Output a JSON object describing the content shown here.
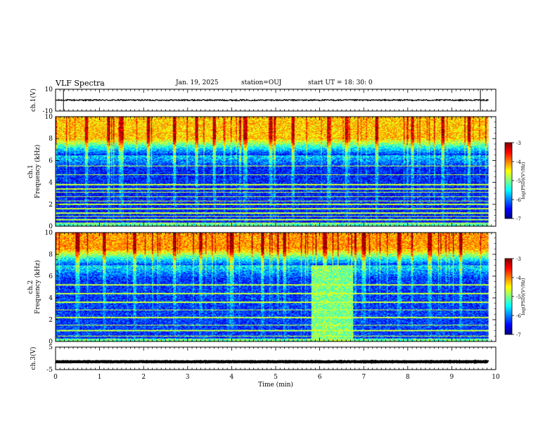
{
  "header": {
    "title": "VLF Spectra",
    "date": "Jan. 19, 2025",
    "station": "station=OUJ",
    "start": "start UT =  18: 30: 0"
  },
  "colors": {
    "colormap": [
      "#00007f",
      "#0000ff",
      "#007fff",
      "#00ffff",
      "#7fff7f",
      "#ffff00",
      "#ff7f00",
      "#ff0000",
      "#7f0000"
    ],
    "waveform": "#000000",
    "background": "#ffffff"
  },
  "chart_data": [
    {
      "type": "line",
      "name": "ch1-waveform",
      "ylabel": "ch.1(V)",
      "ylim": [
        -10,
        10
      ],
      "ytick_labels": [
        "10",
        "-10"
      ],
      "xlim": [
        0,
        10
      ],
      "baseline": 0,
      "noise_amplitude": 0.6,
      "spikes_min": [
        0.18,
        9.65
      ],
      "legend": "none"
    },
    {
      "type": "heatmap",
      "name": "ch1-spectrogram",
      "ylabel": "ch.1\nFrequency (kHz)",
      "ylim": [
        0,
        10
      ],
      "xlim": [
        0,
        10
      ],
      "ytick_labels": [
        "0",
        "2",
        "4",
        "6",
        "8",
        "10"
      ],
      "colorbar": {
        "label": "log(PSD)(V²/Hz)",
        "range": [
          -7,
          -3
        ],
        "tick_labels": [
          "-3",
          "-4",
          "-5",
          "-6",
          "-7"
        ]
      },
      "data_end_min": 9.83,
      "quiet_band_khz": [
        0.3,
        6.5
      ],
      "emission_band_khz": [
        6.5,
        10
      ],
      "log_psd_emission": -4.3,
      "log_psd_quiet": -6.4,
      "narrowband_lines_khz": [
        0.3,
        0.6,
        0.9,
        1.2,
        1.6,
        2.0,
        2.3,
        2.7,
        3.1,
        3.4,
        3.8,
        4.7,
        5.5
      ],
      "impulsive_events_min": [
        0.7,
        1.2,
        1.5,
        2.1,
        2.7,
        3.2,
        3.6,
        4.3,
        4.9,
        5.4,
        6.2,
        6.6,
        7.3,
        8.1,
        8.8,
        9.4
      ]
    },
    {
      "type": "heatmap",
      "name": "ch2-spectrogram",
      "ylabel": "ch.2\nFrequency (kHz)",
      "ylim": [
        0,
        10
      ],
      "xlim": [
        0,
        10
      ],
      "ytick_labels": [
        "0",
        "2",
        "4",
        "6",
        "8",
        "10"
      ],
      "colorbar": {
        "label": "log(PSD)(V²/Hz)",
        "range": [
          -7,
          -3
        ],
        "tick_labels": [
          "-3",
          "-4",
          "-5",
          "-6",
          "-7"
        ]
      },
      "data_end_min": 9.83,
      "quiet_band_khz": [
        0.3,
        7.0
      ],
      "emission_band_khz": [
        7.0,
        10
      ],
      "log_psd_emission": -4.1,
      "log_psd_quiet": -6.3,
      "enhanced_interval_min": [
        5.8,
        6.75
      ],
      "enhanced_interval_khz": [
        0,
        7
      ],
      "log_psd_enhanced": -5.0,
      "narrowband_lines_khz": [
        0.5,
        1.0,
        1.5,
        2.2,
        2.9,
        3.6,
        4.4,
        5.2
      ],
      "impulsive_events_min": [
        0.5,
        1.1,
        1.8,
        2.7,
        3.3,
        4.0,
        4.7,
        5.2,
        6.1,
        7.0,
        7.8,
        8.5,
        9.2
      ]
    },
    {
      "type": "line",
      "name": "ch3-waveform",
      "ylabel": "ch.3(V)",
      "ylim": [
        -5,
        5
      ],
      "ytick_labels": [
        "5",
        "-5"
      ],
      "xlim": [
        0,
        10
      ],
      "xlabel": "Time (min)",
      "xtick_labels": [
        "0",
        "1",
        "2",
        "3",
        "4",
        "5",
        "6",
        "7",
        "8",
        "9",
        "10"
      ],
      "baseline": -1.5,
      "noise_amplitude": 0.12,
      "legend": "none"
    }
  ]
}
